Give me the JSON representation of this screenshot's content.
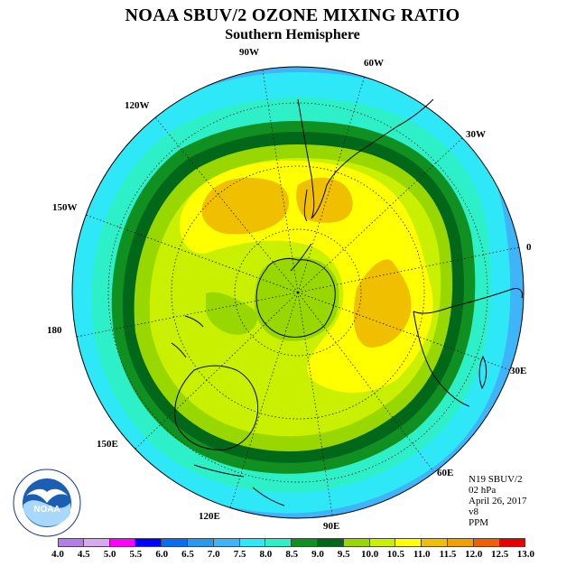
{
  "title": "NOAA SBUV/2 OZONE MIXING RATIO",
  "subtitle": "Southern Hemisphere",
  "longitude_labels": {
    "w90": "90W",
    "w60": "60W",
    "w30": "30W",
    "w120": "120W",
    "w150": "150W",
    "zero": "0",
    "e180": "180",
    "e30": "30E",
    "e150": "150E",
    "e60": "60E",
    "e120": "120E",
    "e90": "90E"
  },
  "info": {
    "instrument": "N19 SBUV/2",
    "level": "02 hPa",
    "date": "April 26, 2017",
    "version": "v8",
    "units": "PPM"
  },
  "logo": {
    "text": "NOAA",
    "ring_text": "NATIONAL OCEANIC AND ATMOSPHERIC ADMINISTRATION · U.S. DEPARTMENT OF COMMERCE"
  },
  "colorbar": {
    "ticks": [
      "4.0",
      "4.5",
      "5.0",
      "5.5",
      "6.0",
      "6.5",
      "7.0",
      "7.5",
      "8.0",
      "8.5",
      "9.0",
      "9.5",
      "10.0",
      "10.5",
      "11.0",
      "11.5",
      "12.0",
      "12.5",
      "13.0"
    ],
    "colors": [
      "#b27fe8",
      "#d8a8f0",
      "#ff00ff",
      "#0000ff",
      "#0a6cf0",
      "#2a9af0",
      "#40b4f8",
      "#2ee8f8",
      "#2ef0c8",
      "#109020",
      "#006818",
      "#98d800",
      "#c8f000",
      "#ffff00",
      "#f0c000",
      "#f0a000",
      "#f06000",
      "#e80000",
      "#905040"
    ]
  },
  "chart_data": {
    "type": "heatmap",
    "projection": "south polar stereographic",
    "field": "ozone mixing ratio",
    "units": "PPM",
    "level": "02 hPa",
    "contour_levels": [
      4.0,
      4.5,
      5.0,
      5.5,
      6.0,
      6.5,
      7.0,
      7.5,
      8.0,
      8.5,
      9.0,
      9.5,
      10.0,
      10.5,
      11.0,
      11.5,
      12.0,
      12.5,
      13.0
    ],
    "approximate_zonal_bands": [
      {
        "region": "outer edge (equatorial)",
        "range": "6.5–7.5"
      },
      {
        "region": "subtropics",
        "range": "7.5–8.0"
      },
      {
        "region": "mid-latitude ring",
        "range": "8.0–9.0"
      },
      {
        "region": "inner mid-latitudes",
        "range": "9.0–10.0"
      },
      {
        "region": "polar cap",
        "range": "10.0–11.0"
      },
      {
        "region": "local maxima (S. Atlantic / S. Indian)",
        "range": "11.0–11.5"
      },
      {
        "region": "pole",
        "range": "9.5–10.0"
      }
    ],
    "grid": true
  }
}
